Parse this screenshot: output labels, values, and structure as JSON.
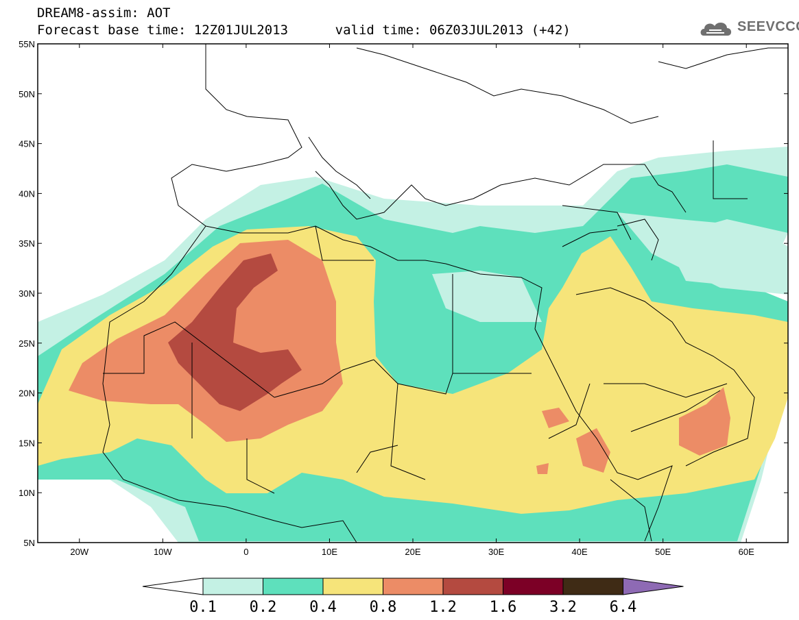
{
  "header": {
    "title_line1": "DREAM8-assim: AOT",
    "title_line2": "Forecast base time: 12Z01JUL2013      valid time: 06Z03JUL2013 (+42)",
    "logo_text": "SEEVCCC"
  },
  "map": {
    "lon_range": [
      -25,
      65
    ],
    "lat_range": [
      5,
      55
    ],
    "lat_ticks": [
      "55N",
      "50N",
      "45N",
      "40N",
      "35N",
      "30N",
      "25N",
      "20N",
      "15N",
      "10N",
      "5N"
    ],
    "lon_ticks": [
      "20W",
      "10W",
      "0",
      "10E",
      "20E",
      "30E",
      "40E",
      "50E",
      "60E"
    ]
  },
  "colorbar": {
    "labels": [
      "0.1",
      "0.2",
      "0.4",
      "0.8",
      "1.2",
      "1.6",
      "3.2",
      "6.4"
    ],
    "colors": [
      "#ffffff",
      "#c4f1e4",
      "#5ee0bc",
      "#f6e47a",
      "#ec8c66",
      "#b44a40",
      "#7c0026",
      "#3f2b15",
      "#8e6ab4"
    ]
  }
}
